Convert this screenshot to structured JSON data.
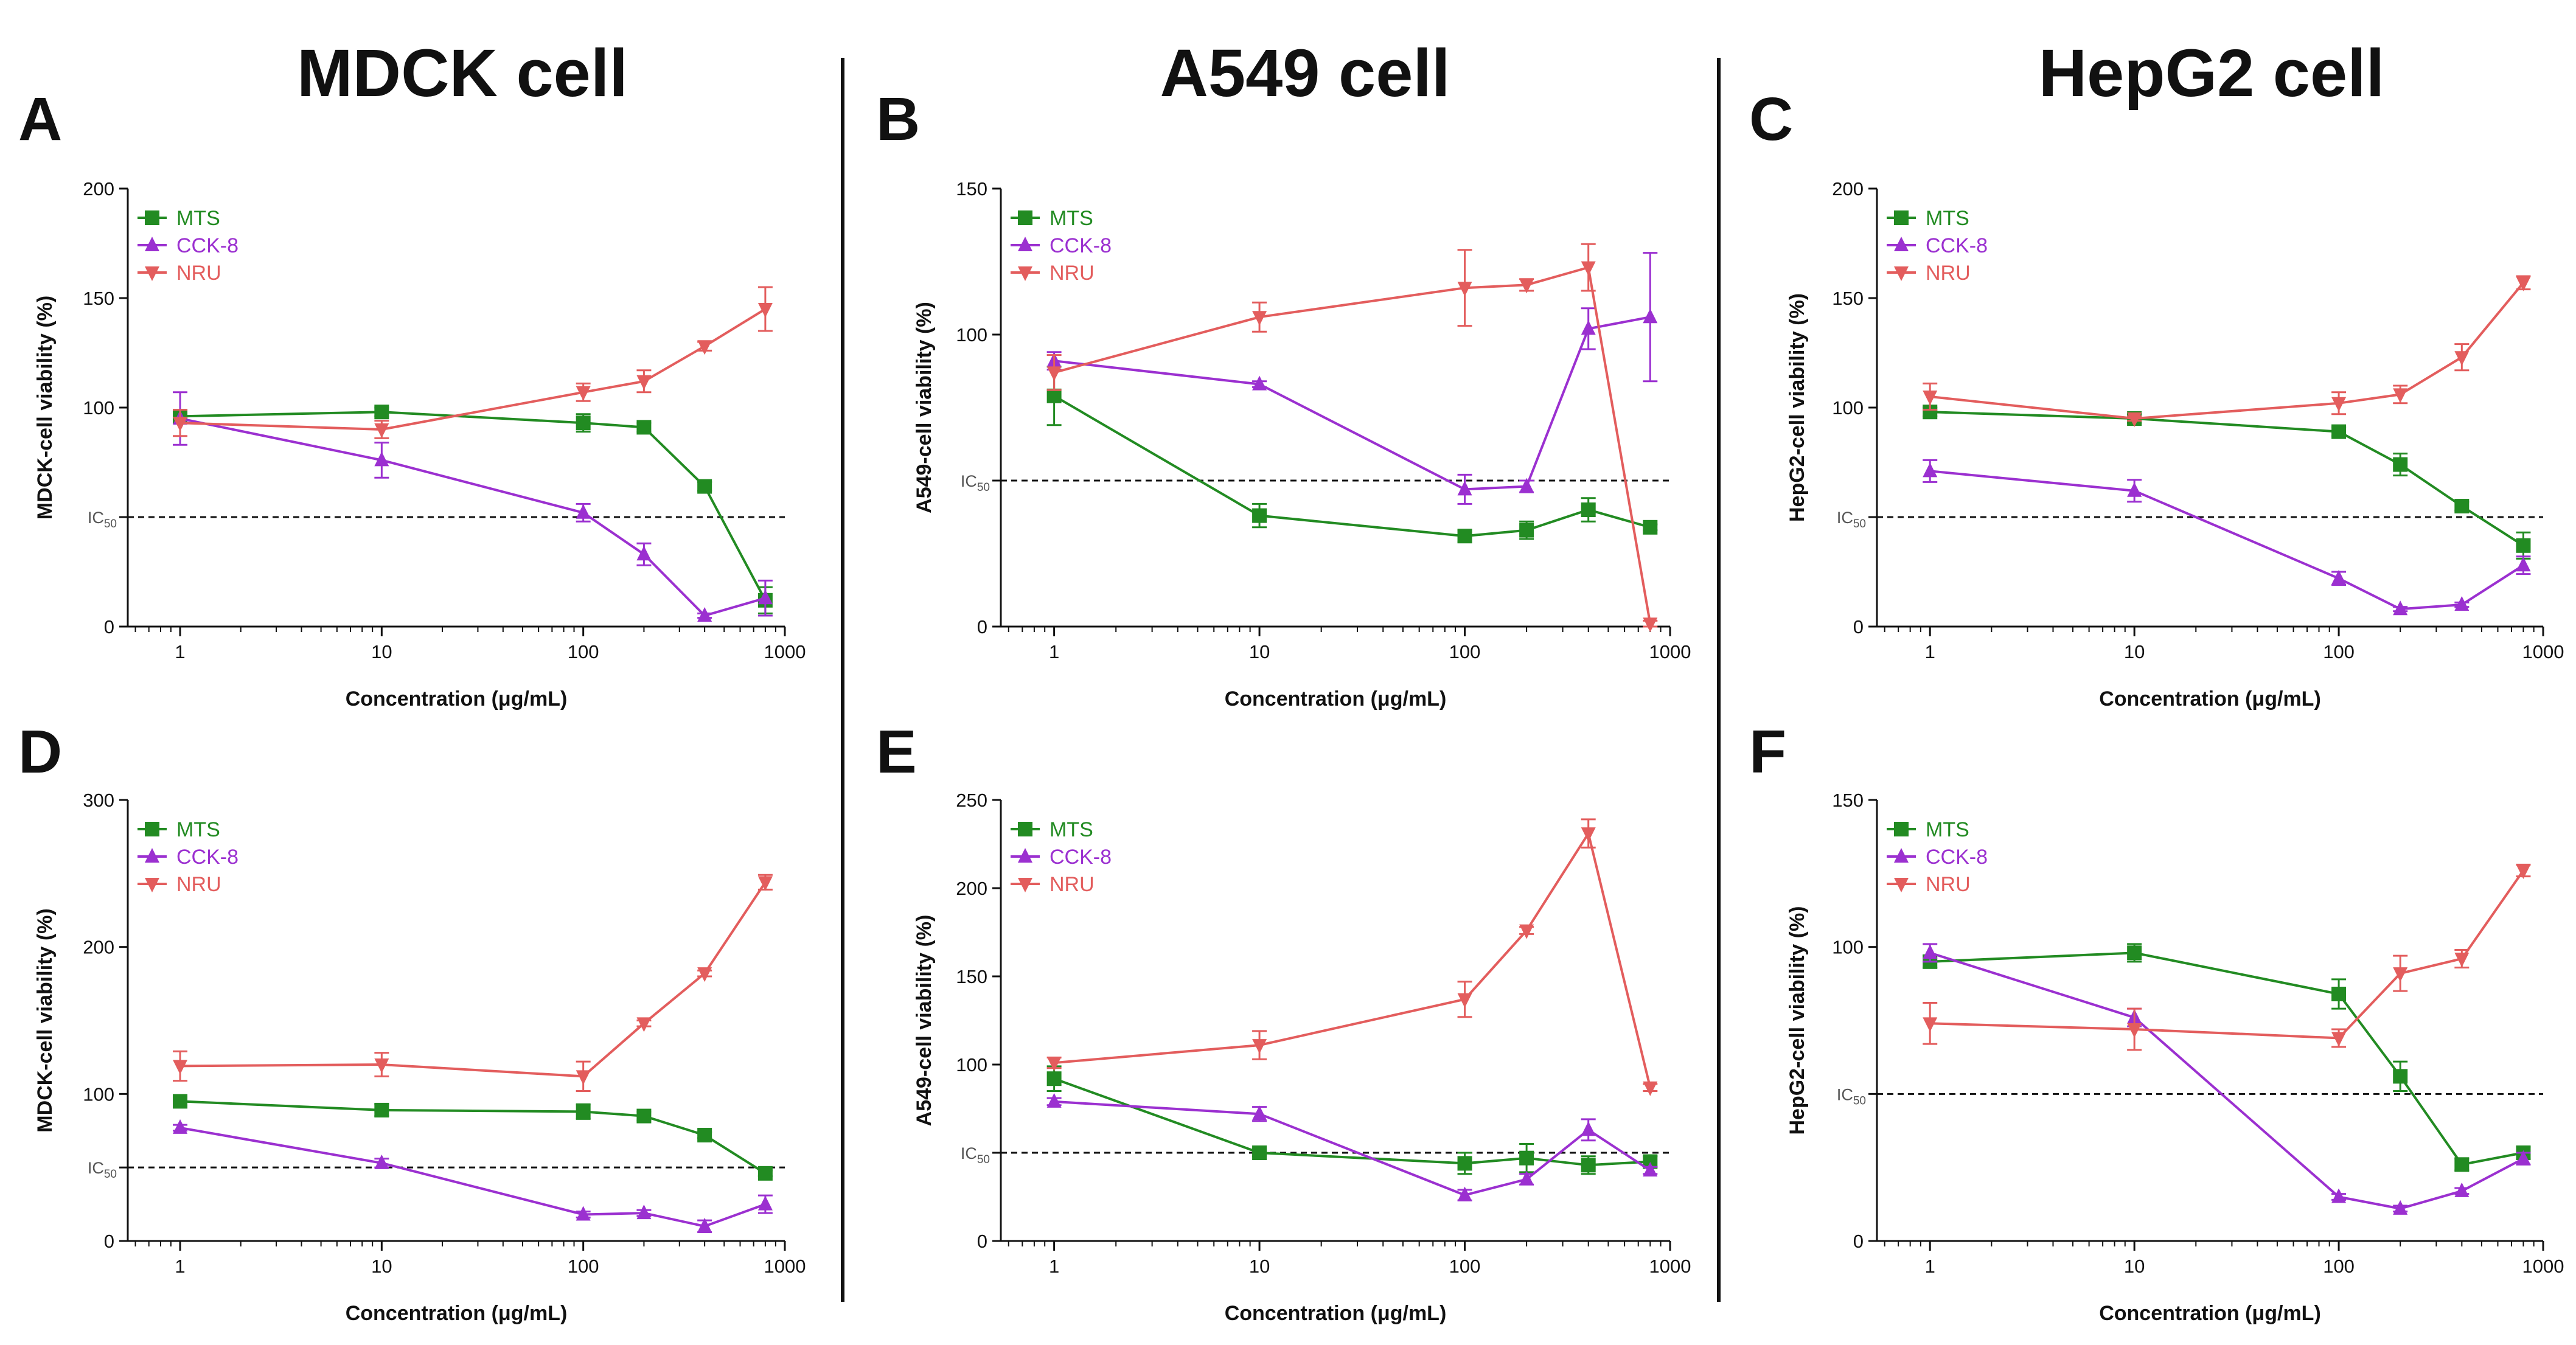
{
  "figure": {
    "column_titles": [
      "MDCK cell",
      "A549 cell",
      "HepG2 cell"
    ],
    "series_colors": {
      "MTS": "#228b22",
      "CCK-8": "#9b30d0",
      "NRU": "#e35d5d"
    },
    "ic_label_main": "IC",
    "ic_label_sub": "50"
  },
  "chart_data": [
    {
      "panel": "A",
      "type": "line",
      "title": "MDCK cell",
      "xlabel": "Concentration (μg/mL)",
      "ylabel": "MDCK-cell viability (%)",
      "x_scale": "log",
      "xlim": [
        0.55,
        1000
      ],
      "ylim": [
        0,
        200
      ],
      "x_ticks": [
        1,
        10,
        100,
        1000
      ],
      "x_tick_labels": [
        "1",
        "10",
        "100",
        "1000"
      ],
      "y_ticks": [
        0,
        50,
        100,
        150,
        200
      ],
      "y_tick_labels": [
        "0",
        "",
        "100",
        "150",
        "200"
      ],
      "ic50": 50,
      "legend": "top-left",
      "x": [
        1,
        10,
        100,
        200,
        400,
        800
      ],
      "series": [
        {
          "name": "MTS",
          "marker": "square",
          "values": [
            96,
            98,
            93,
            91,
            64,
            12
          ],
          "errors": [
            3,
            2,
            4,
            2,
            2,
            6
          ]
        },
        {
          "name": "CCK-8",
          "marker": "triangle-up",
          "values": [
            95,
            76,
            52,
            33,
            5,
            13
          ],
          "errors": [
            12,
            8,
            4,
            5,
            1,
            8
          ]
        },
        {
          "name": "NRU",
          "marker": "triangle-down",
          "values": [
            93,
            90,
            107,
            112,
            128,
            145
          ],
          "errors": [
            6,
            4,
            4,
            5,
            2,
            10
          ]
        }
      ]
    },
    {
      "panel": "B",
      "type": "line",
      "title": "A549 cell",
      "xlabel": "Concentration (μg/mL)",
      "ylabel": "A549-cell viability (%)",
      "x_scale": "log",
      "xlim": [
        0.55,
        1000
      ],
      "ylim": [
        0,
        150
      ],
      "x_ticks": [
        1,
        10,
        100,
        1000
      ],
      "x_tick_labels": [
        "1",
        "10",
        "100",
        "1000"
      ],
      "y_ticks": [
        0,
        50,
        100,
        150
      ],
      "y_tick_labels": [
        "0",
        "",
        "100",
        "150"
      ],
      "ic50": 50,
      "legend": "top-left",
      "x": [
        1,
        10,
        100,
        200,
        400,
        800
      ],
      "series": [
        {
          "name": "MTS",
          "marker": "square",
          "values": [
            79,
            38,
            31,
            33,
            40,
            34
          ],
          "errors": [
            10,
            4,
            2,
            3,
            4,
            1
          ]
        },
        {
          "name": "CCK-8",
          "marker": "triangle-up",
          "values": [
            91,
            83,
            47,
            48,
            102,
            106
          ],
          "errors": [
            3,
            1,
            5,
            2,
            7,
            22
          ]
        },
        {
          "name": "NRU",
          "marker": "triangle-down",
          "values": [
            87,
            106,
            116,
            117,
            123,
            1
          ],
          "errors": [
            6,
            5,
            13,
            2,
            8,
            1
          ]
        }
      ]
    },
    {
      "panel": "C",
      "type": "line",
      "title": "HepG2 cell",
      "xlabel": "Concentration (μg/mL)",
      "ylabel": "HepG2-cell viability (%)",
      "x_scale": "log",
      "xlim": [
        0.55,
        1000
      ],
      "ylim": [
        0,
        200
      ],
      "x_ticks": [
        1,
        10,
        100,
        1000
      ],
      "x_tick_labels": [
        "1",
        "10",
        "100",
        "1000"
      ],
      "y_ticks": [
        0,
        50,
        100,
        150,
        200
      ],
      "y_tick_labels": [
        "0",
        "",
        "100",
        "150",
        "200"
      ],
      "ic50": 50,
      "legend": "top-left",
      "x": [
        1,
        10,
        100,
        200,
        400,
        800
      ],
      "series": [
        {
          "name": "MTS",
          "marker": "square",
          "values": [
            98,
            95,
            89,
            74,
            55,
            37
          ],
          "errors": [
            2,
            2,
            2,
            5,
            2,
            6
          ]
        },
        {
          "name": "CCK-8",
          "marker": "triangle-up",
          "values": [
            71,
            62,
            22,
            8,
            10,
            28
          ],
          "errors": [
            5,
            5,
            3,
            1,
            1,
            4
          ]
        },
        {
          "name": "NRU",
          "marker": "triangle-down",
          "values": [
            105,
            95,
            102,
            106,
            123,
            157
          ],
          "errors": [
            6,
            1,
            5,
            4,
            6,
            3
          ]
        }
      ]
    },
    {
      "panel": "D",
      "type": "line",
      "title": "MDCK cell",
      "xlabel": "Concentration (μg/mL)",
      "ylabel": "MDCK-cell viability (%)",
      "x_scale": "log",
      "xlim": [
        0.55,
        1000
      ],
      "ylim": [
        0,
        300
      ],
      "x_ticks": [
        1,
        10,
        100,
        1000
      ],
      "x_tick_labels": [
        "1",
        "10",
        "100",
        "1000"
      ],
      "y_ticks": [
        0,
        50,
        100,
        200,
        300
      ],
      "y_tick_labels": [
        "0",
        "",
        "100",
        "200",
        "300"
      ],
      "ic50": 50,
      "legend": "top-left",
      "x": [
        1,
        10,
        100,
        200,
        400,
        800
      ],
      "series": [
        {
          "name": "MTS",
          "marker": "square",
          "values": [
            95,
            89,
            88,
            85,
            72,
            46
          ],
          "errors": [
            3,
            4,
            5,
            3,
            2,
            2
          ]
        },
        {
          "name": "CCK-8",
          "marker": "triangle-up",
          "values": [
            77,
            53,
            18,
            19,
            10,
            25
          ],
          "errors": [
            2,
            3,
            2,
            2,
            4,
            6
          ]
        },
        {
          "name": "NRU",
          "marker": "triangle-down",
          "values": [
            119,
            120,
            112,
            148,
            182,
            244
          ],
          "errors": [
            10,
            8,
            10,
            2,
            2,
            5
          ]
        }
      ]
    },
    {
      "panel": "E",
      "type": "line",
      "title": "A549 cell",
      "xlabel": "Concentration (μg/mL)",
      "ylabel": "A549-cell viability (%)",
      "x_scale": "log",
      "xlim": [
        0.55,
        1000
      ],
      "ylim": [
        0,
        250
      ],
      "x_ticks": [
        1,
        10,
        100,
        1000
      ],
      "x_tick_labels": [
        "1",
        "10",
        "100",
        "1000"
      ],
      "y_ticks": [
        0,
        50,
        100,
        150,
        200,
        250
      ],
      "y_tick_labels": [
        "0",
        "",
        "100",
        "150",
        "200",
        "250"
      ],
      "ic50": 50,
      "legend": "top-left",
      "x": [
        1,
        10,
        100,
        200,
        400,
        800
      ],
      "series": [
        {
          "name": "MTS",
          "marker": "square",
          "values": [
            92,
            50,
            44,
            47,
            43,
            45
          ],
          "errors": [
            7,
            2,
            6,
            8,
            5,
            3
          ]
        },
        {
          "name": "CCK-8",
          "marker": "triangle-up",
          "values": [
            79,
            72,
            26,
            35,
            63,
            40
          ],
          "errors": [
            2,
            4,
            3,
            3,
            6,
            2
          ]
        },
        {
          "name": "NRU",
          "marker": "triangle-down",
          "values": [
            101,
            111,
            137,
            176,
            231,
            87
          ],
          "errors": [
            3,
            8,
            10,
            2,
            8,
            2
          ]
        }
      ]
    },
    {
      "panel": "F",
      "type": "line",
      "title": "HepG2 cell",
      "xlabel": "Concentration (μg/mL)",
      "ylabel": "HepG2-cell viability (%)",
      "x_scale": "log",
      "xlim": [
        0.55,
        1000
      ],
      "ylim": [
        0,
        150
      ],
      "x_ticks": [
        1,
        10,
        100,
        1000
      ],
      "x_tick_labels": [
        "1",
        "10",
        "100",
        "1000"
      ],
      "y_ticks": [
        0,
        50,
        100,
        150
      ],
      "y_tick_labels": [
        "0",
        "",
        "100",
        "150"
      ],
      "ic50": 50,
      "legend": "top-left",
      "x": [
        1,
        10,
        100,
        200,
        400,
        800
      ],
      "series": [
        {
          "name": "MTS",
          "marker": "square",
          "values": [
            95,
            98,
            84,
            56,
            26,
            30
          ],
          "errors": [
            2,
            3,
            5,
            5,
            2,
            2
          ]
        },
        {
          "name": "CCK-8",
          "marker": "triangle-up",
          "values": [
            98,
            76,
            15,
            11,
            17,
            28
          ],
          "errors": [
            3,
            3,
            1,
            1,
            1,
            2
          ]
        },
        {
          "name": "NRU",
          "marker": "triangle-down",
          "values": [
            74,
            72,
            69,
            91,
            96,
            126
          ],
          "errors": [
            7,
            7,
            3,
            6,
            3,
            2
          ]
        }
      ]
    }
  ]
}
